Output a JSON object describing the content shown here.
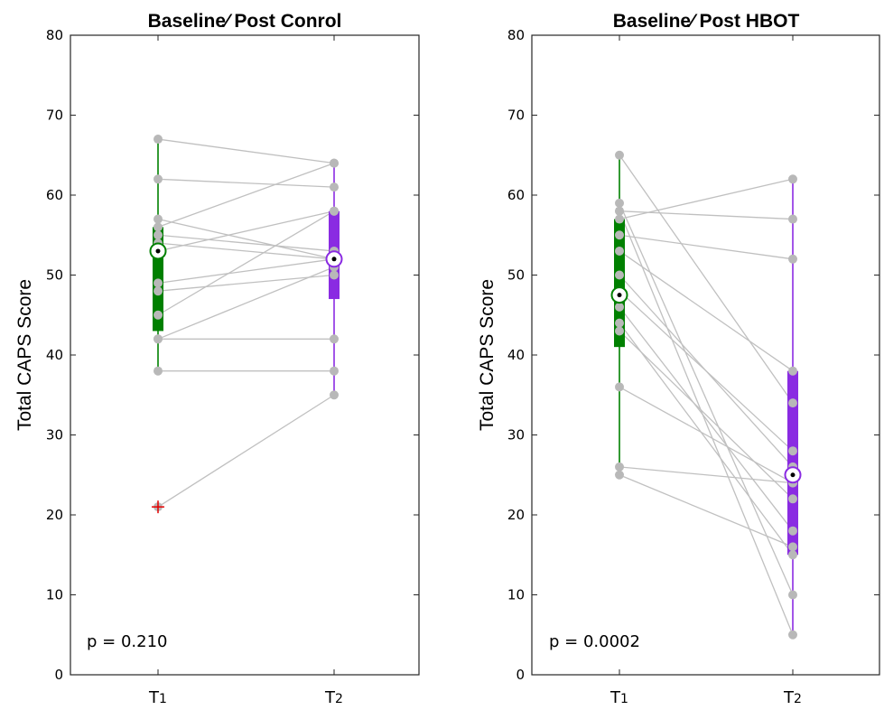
{
  "chart_data": [
    {
      "type": "box-paired",
      "title": "Baseline⁄ Post Conrol",
      "ylabel": "Total CAPS Score",
      "xlabel": "",
      "categories": [
        "T1",
        "T2"
      ],
      "ylim": [
        0,
        80
      ],
      "yticks": [
        "0",
        "10",
        "20",
        "30",
        "40",
        "50",
        "60",
        "70",
        "80"
      ],
      "annotation": "p = 0.210",
      "colors": {
        "T1": "#008000",
        "T2": "#8a2be2",
        "pair_line": "#c0c0c0",
        "point": "#b8b8b8",
        "outlier": "#e60000"
      },
      "boxes": [
        {
          "category": "T1",
          "median": 53,
          "q1": 43,
          "q3": 56,
          "whisker_low": 38,
          "whisker_high": 67
        },
        {
          "category": "T2",
          "median": 52,
          "q1": 47,
          "q3": 58,
          "whisker_low": 35,
          "whisker_high": 64
        }
      ],
      "outliers": [
        {
          "category": "T1",
          "value": 21
        }
      ],
      "pairs": [
        [
          67,
          64
        ],
        [
          62,
          61
        ],
        [
          57,
          52
        ],
        [
          56,
          64
        ],
        [
          55,
          53
        ],
        [
          54,
          52
        ],
        [
          53,
          58
        ],
        [
          49,
          52
        ],
        [
          48,
          50
        ],
        [
          45,
          58
        ],
        [
          42,
          51
        ],
        [
          42,
          42
        ],
        [
          38,
          38
        ],
        [
          21,
          35
        ]
      ]
    },
    {
      "type": "box-paired",
      "title": "Baseline⁄ Post HBOT",
      "ylabel": "Total CAPS Score",
      "xlabel": "",
      "categories": [
        "T1",
        "T2"
      ],
      "ylim": [
        0,
        80
      ],
      "yticks": [
        "0",
        "10",
        "20",
        "30",
        "40",
        "50",
        "60",
        "70",
        "80"
      ],
      "annotation": "p = 0.0002",
      "colors": {
        "T1": "#008000",
        "T2": "#8a2be2",
        "pair_line": "#c0c0c0",
        "point": "#b8b8b8",
        "outlier": "#e60000"
      },
      "boxes": [
        {
          "category": "T1",
          "median": 47.5,
          "q1": 41,
          "q3": 57,
          "whisker_low": 25,
          "whisker_high": 65
        },
        {
          "category": "T2",
          "median": 25,
          "q1": 15,
          "q3": 38,
          "whisker_low": 5,
          "whisker_high": 62
        }
      ],
      "outliers": [],
      "pairs": [
        [
          65,
          34
        ],
        [
          59,
          10
        ],
        [
          58,
          5
        ],
        [
          58,
          57
        ],
        [
          57,
          62
        ],
        [
          55,
          52
        ],
        [
          53,
          38
        ],
        [
          50,
          26
        ],
        [
          48,
          28
        ],
        [
          46,
          18
        ],
        [
          44,
          15
        ],
        [
          43,
          22
        ],
        [
          36,
          24
        ],
        [
          26,
          24
        ],
        [
          25,
          16
        ]
      ]
    }
  ]
}
